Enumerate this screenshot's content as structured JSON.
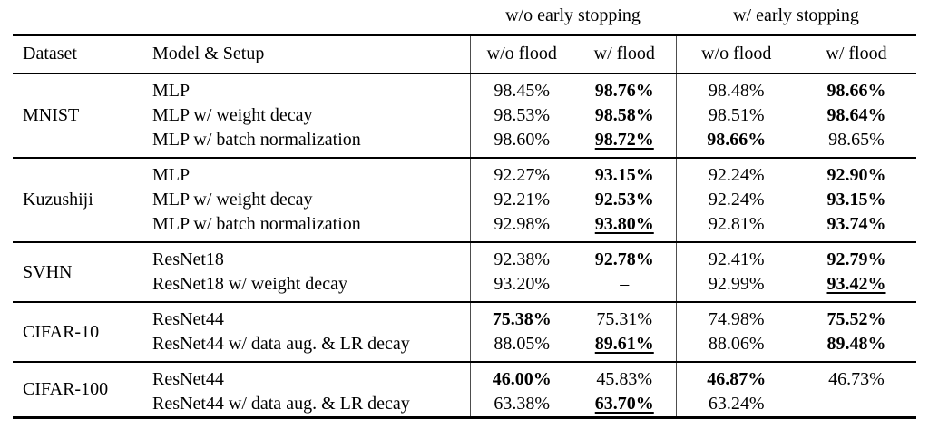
{
  "table": {
    "top_headers": [
      {
        "label": "w/o early stopping"
      },
      {
        "label": "w/ early stopping"
      }
    ],
    "col_headers": [
      "Dataset",
      "Model & Setup",
      "w/o flood",
      "w/ flood",
      "w/o flood",
      "w/ flood"
    ],
    "groups": [
      {
        "dataset": "MNIST",
        "rows": [
          {
            "model": "MLP",
            "values": [
              {
                "t": "98.45%"
              },
              {
                "t": "98.76%",
                "bold": true
              },
              {
                "t": "98.48%"
              },
              {
                "t": "98.66%",
                "bold": true
              }
            ]
          },
          {
            "model": "MLP w/ weight decay",
            "values": [
              {
                "t": "98.53%"
              },
              {
                "t": "98.58%",
                "bold": true
              },
              {
                "t": "98.51%"
              },
              {
                "t": "98.64%",
                "bold": true
              }
            ]
          },
          {
            "model": "MLP w/ batch normalization",
            "values": [
              {
                "t": "98.60%"
              },
              {
                "t": "98.72%",
                "bold": true,
                "underline": true
              },
              {
                "t": "98.66%",
                "bold": true
              },
              {
                "t": "98.65%"
              }
            ]
          }
        ]
      },
      {
        "dataset": "Kuzushiji",
        "rows": [
          {
            "model": "MLP",
            "values": [
              {
                "t": "92.27%"
              },
              {
                "t": "93.15%",
                "bold": true
              },
              {
                "t": "92.24%"
              },
              {
                "t": "92.90%",
                "bold": true
              }
            ]
          },
          {
            "model": "MLP w/ weight decay",
            "values": [
              {
                "t": "92.21%"
              },
              {
                "t": "92.53%",
                "bold": true
              },
              {
                "t": "92.24%"
              },
              {
                "t": "93.15%",
                "bold": true
              }
            ]
          },
          {
            "model": "MLP w/ batch normalization",
            "values": [
              {
                "t": "92.98%"
              },
              {
                "t": "93.80%",
                "bold": true,
                "underline": true
              },
              {
                "t": "92.81%"
              },
              {
                "t": "93.74%",
                "bold": true
              }
            ]
          }
        ]
      },
      {
        "dataset": "SVHN",
        "rows": [
          {
            "model": "ResNet18",
            "values": [
              {
                "t": "92.38%"
              },
              {
                "t": "92.78%",
                "bold": true
              },
              {
                "t": "92.41%"
              },
              {
                "t": "92.79%",
                "bold": true
              }
            ]
          },
          {
            "model": "ResNet18 w/ weight decay",
            "values": [
              {
                "t": "93.20%"
              },
              {
                "t": "–"
              },
              {
                "t": "92.99%"
              },
              {
                "t": "93.42%",
                "bold": true,
                "underline": true
              }
            ]
          }
        ]
      },
      {
        "dataset": "CIFAR-10",
        "rows": [
          {
            "model": "ResNet44",
            "values": [
              {
                "t": "75.38%",
                "bold": true
              },
              {
                "t": "75.31%"
              },
              {
                "t": "74.98%"
              },
              {
                "t": "75.52%",
                "bold": true
              }
            ]
          },
          {
            "model": "ResNet44 w/ data aug. & LR decay",
            "values": [
              {
                "t": "88.05%"
              },
              {
                "t": "89.61%",
                "bold": true,
                "underline": true
              },
              {
                "t": "88.06%"
              },
              {
                "t": "89.48%",
                "bold": true
              }
            ]
          }
        ]
      },
      {
        "dataset": "CIFAR-100",
        "rows": [
          {
            "model": "ResNet44",
            "values": [
              {
                "t": "46.00%",
                "bold": true
              },
              {
                "t": "45.83%"
              },
              {
                "t": "46.87%",
                "bold": true
              },
              {
                "t": "46.73%"
              }
            ]
          },
          {
            "model": "ResNet44 w/ data aug. & LR decay",
            "values": [
              {
                "t": "63.38%"
              },
              {
                "t": "63.70%",
                "bold": true,
                "underline": true
              },
              {
                "t": "63.24%"
              },
              {
                "t": "–"
              }
            ]
          }
        ]
      }
    ]
  },
  "colors": {
    "text": "#000000",
    "background": "#ffffff",
    "horizontal_rule": "#000000",
    "vertical_rule": "#4d4d4d"
  }
}
